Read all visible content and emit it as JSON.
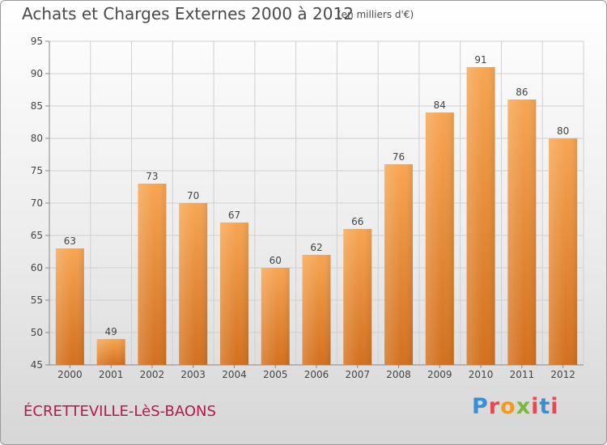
{
  "header": {
    "title": "Achats et Charges Externes 2000 à 2012",
    "subtitle": "(en milliers d'€)"
  },
  "footer": {
    "location": "ÉCRETTEVILLE-LèS-BAONS",
    "brand": "Proxiti"
  },
  "colors": {
    "bar_top": "#f7a552",
    "bar_bottom": "#d2701e",
    "brand_letters": [
      "#3a8fd4",
      "#e8484f",
      "#f29a1e",
      "#7ab83b",
      "#e8484f",
      "#3a8fd4",
      "#e8484f"
    ]
  },
  "chart_data": {
    "type": "bar",
    "title": "Achats et Charges Externes 2000 à 2012",
    "subtitle": "(en milliers d'€)",
    "categories": [
      "2000",
      "2001",
      "2002",
      "2003",
      "2004",
      "2005",
      "2006",
      "2007",
      "2008",
      "2009",
      "2010",
      "2011",
      "2012"
    ],
    "values": [
      63,
      49,
      73,
      70,
      67,
      60,
      62,
      66,
      76,
      84,
      91,
      86,
      80
    ],
    "ylim": [
      45,
      95
    ],
    "yticks": [
      45,
      50,
      55,
      60,
      65,
      70,
      75,
      80,
      85,
      90,
      95
    ],
    "grid": true,
    "data_labels": true
  }
}
